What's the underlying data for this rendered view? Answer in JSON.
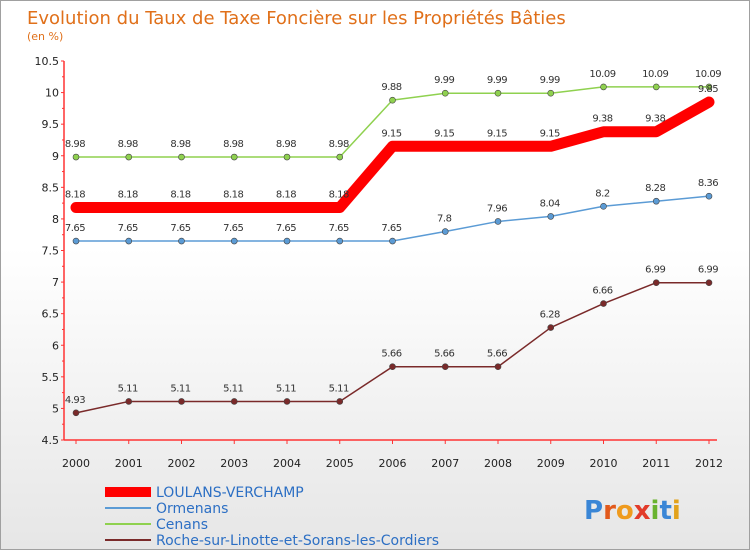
{
  "chart_data": {
    "type": "line",
    "title": "Evolution du Taux de Taxe Foncière sur les Propriétés Bâties",
    "unit_label": "(en %)",
    "x": [
      "2000",
      "2001",
      "2002",
      "2003",
      "2004",
      "2005",
      "2006",
      "2007",
      "2008",
      "2009",
      "2010",
      "2011",
      "2012"
    ],
    "y_ticks": [
      "4.5",
      "5",
      "5.5",
      "6",
      "6.5",
      "7",
      "7.5",
      "8",
      "8.5",
      "9",
      "9.5",
      "10",
      "10.5"
    ],
    "ylim": [
      4.5,
      10.5
    ],
    "grid": false,
    "legend_position": "bottom-left",
    "series": [
      {
        "name": "LOULANS-VERCHAMP",
        "color": "#ff0000",
        "values": [
          8.18,
          8.18,
          8.18,
          8.18,
          8.18,
          8.18,
          9.15,
          9.15,
          9.15,
          9.15,
          9.38,
          9.38,
          9.85
        ],
        "labels": [
          "8.18",
          "8.18",
          "8.18",
          "8.18",
          "8.18",
          "8.18",
          "9.15",
          "9.15",
          "9.15",
          "9.15",
          "9.38",
          "9.38",
          "9.85"
        ]
      },
      {
        "name": "Ormenans",
        "color": "#5b9bd5",
        "values": [
          7.65,
          7.65,
          7.65,
          7.65,
          7.65,
          7.65,
          7.65,
          7.8,
          7.96,
          8.04,
          8.2,
          8.28,
          8.36
        ],
        "labels": [
          "7.65",
          "7.65",
          "7.65",
          "7.65",
          "7.65",
          "7.65",
          "7.65",
          "7.8",
          "7.96",
          "8.04",
          "8.2",
          "8.28",
          "8.36"
        ]
      },
      {
        "name": "Cenans",
        "color": "#8fd14f",
        "values": [
          8.98,
          8.98,
          8.98,
          8.98,
          8.98,
          8.98,
          9.88,
          9.99,
          9.99,
          9.99,
          10.09,
          10.09,
          10.09
        ],
        "labels": [
          "8.98",
          "8.98",
          "8.98",
          "8.98",
          "8.98",
          "8.98",
          "9.88",
          "9.99",
          "9.99",
          "9.99",
          "10.09",
          "10.09",
          "10.09"
        ]
      },
      {
        "name": "Roche-sur-Linotte-et-Sorans-les-Cordiers",
        "color": "#7a2a2a",
        "values": [
          4.93,
          5.11,
          5.11,
          5.11,
          5.11,
          5.11,
          5.66,
          5.66,
          5.66,
          6.28,
          6.66,
          6.99,
          6.99
        ],
        "labels": [
          "4.93",
          "5.11",
          "5.11",
          "5.11",
          "5.11",
          "5.11",
          "5.66",
          "5.66",
          "5.66",
          "6.28",
          "6.66",
          "6.99",
          "6.99"
        ]
      }
    ]
  },
  "logo": {
    "text": "Proxiti",
    "letter_colors": [
      "#3a86d6",
      "#e25a1c",
      "#ef9b1e",
      "#e23b2a",
      "#69b32f",
      "#3a86d6",
      "#e2a21c"
    ]
  }
}
